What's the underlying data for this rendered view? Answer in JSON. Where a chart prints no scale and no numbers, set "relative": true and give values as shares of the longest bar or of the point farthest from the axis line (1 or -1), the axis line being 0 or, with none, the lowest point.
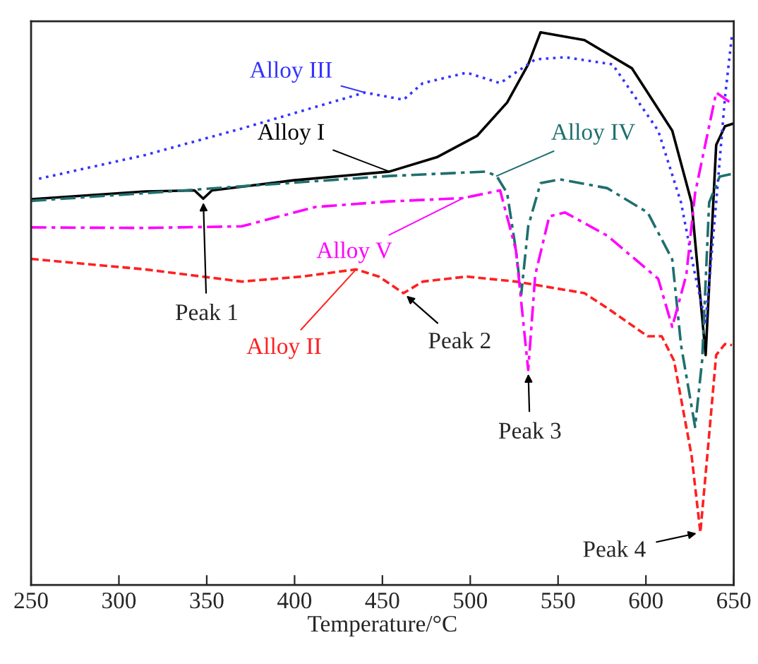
{
  "chart_data": {
    "type": "line",
    "relative": true,
    "xlabel": "Temperature/°C",
    "xlim": [
      250,
      650
    ],
    "xticks": [
      250,
      300,
      350,
      400,
      450,
      500,
      550,
      600,
      650
    ],
    "grid": false,
    "legend": false,
    "marker": "none",
    "series": [
      {
        "name": "Alloy I",
        "color": "#000000",
        "line_style": "solid",
        "x": [
          250,
          315,
          343,
          348,
          353,
          399,
          454,
          481,
          504,
          521,
          533,
          540,
          565,
          592,
          615,
          626,
          634,
          640,
          645,
          650
        ],
        "values": [
          0.698,
          0.712,
          0.714,
          0.699,
          0.714,
          0.732,
          0.748,
          0.774,
          0.813,
          0.873,
          0.942,
          1.0,
          0.986,
          0.935,
          0.822,
          0.692,
          0.416,
          0.796,
          0.83,
          0.835
        ]
      },
      {
        "name": "Alloy II",
        "color": "#ff2020",
        "line_style": "dashed",
        "x": [
          250,
          315,
          370,
          404,
          435,
          448,
          462,
          473,
          498,
          526,
          565,
          578,
          601,
          609,
          616,
          626,
          631,
          635,
          640,
          645,
          649
        ],
        "values": [
          0.59,
          0.571,
          0.549,
          0.558,
          0.571,
          0.558,
          0.528,
          0.549,
          0.558,
          0.549,
          0.528,
          0.501,
          0.45,
          0.45,
          0.406,
          0.234,
          0.095,
          0.236,
          0.416,
          0.436,
          0.434
        ]
      },
      {
        "name": "Alloy III",
        "color": "#3333ff",
        "line_style": "dotted",
        "x": [
          254.5,
          315,
          370,
          440,
          462,
          473,
          498,
          517,
          537,
          554,
          581,
          607,
          620,
          628,
          634,
          640,
          645,
          649
        ],
        "values": [
          0.735,
          0.778,
          0.826,
          0.891,
          0.878,
          0.908,
          0.927,
          0.908,
          0.951,
          0.955,
          0.942,
          0.822,
          0.692,
          0.561,
          0.476,
          0.692,
          0.882,
          0.995
        ]
      },
      {
        "name": "Alloy IV",
        "color": "#1f6f6f",
        "line_style": "dashdot",
        "x": [
          250,
          315,
          400,
          454,
          509,
          515,
          521,
          526,
          529,
          533,
          540,
          551,
          578,
          601,
          615,
          620,
          628,
          632,
          636,
          642,
          649
        ],
        "values": [
          0.695,
          0.709,
          0.728,
          0.74,
          0.748,
          0.74,
          0.709,
          0.606,
          0.525,
          0.649,
          0.727,
          0.734,
          0.718,
          0.674,
          0.589,
          0.434,
          0.286,
          0.406,
          0.692,
          0.739,
          0.744
        ]
      },
      {
        "name": "Alloy V",
        "color": "#ff00ff",
        "line_style": "dashdot",
        "x": [
          250,
          315,
          370,
          412,
          454,
          496,
          517,
          526,
          533,
          537,
          545,
          554,
          578,
          607,
          615,
          623,
          628,
          640,
          648
        ],
        "values": [
          0.647,
          0.646,
          0.649,
          0.684,
          0.694,
          0.7,
          0.714,
          0.606,
          0.389,
          0.561,
          0.667,
          0.674,
          0.632,
          0.554,
          0.467,
          0.561,
          0.709,
          0.891,
          0.873
        ]
      }
    ],
    "annotations": [
      {
        "text": "Peak 1",
        "x": 348,
        "y": 0.699
      },
      {
        "text": "Peak 2",
        "x": 462,
        "y": 0.528
      },
      {
        "text": "Peak 3",
        "x": 533,
        "y": 0.389
      },
      {
        "text": "Peak 4",
        "x": 631,
        "y": 0.095
      }
    ]
  }
}
